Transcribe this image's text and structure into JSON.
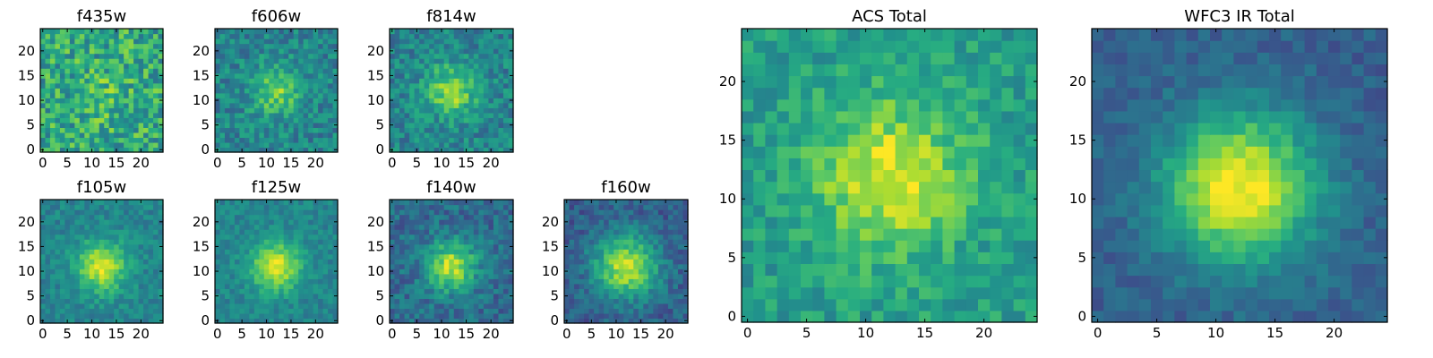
{
  "chart_data": [
    {
      "type": "heatmap",
      "title": "f435w",
      "xticks": [
        "0",
        "5",
        "10",
        "15",
        "20"
      ],
      "yticks": [
        "0",
        "5",
        "10",
        "15",
        "20"
      ],
      "xlim": [
        -0.5,
        24.5
      ],
      "ylim": [
        -0.5,
        24.5
      ],
      "grid_size": 25,
      "colormap": "viridis",
      "grid": false,
      "peak": [
        13,
        11
      ],
      "peak_strength": 0.1,
      "noise": 0.45,
      "base": 0.6
    },
    {
      "type": "heatmap",
      "title": "f606w",
      "xticks": [
        "0",
        "5",
        "10",
        "15",
        "20"
      ],
      "yticks": [
        "0",
        "5",
        "10",
        "15",
        "20"
      ],
      "xlim": [
        -0.5,
        24.5
      ],
      "ylim": [
        -0.5,
        24.5
      ],
      "grid_size": 25,
      "colormap": "viridis",
      "grid": false,
      "peak": [
        12,
        12
      ],
      "peak_strength": 0.35,
      "noise": 0.3,
      "base": 0.45
    },
    {
      "type": "heatmap",
      "title": "f814w",
      "xticks": [
        "0",
        "5",
        "10",
        "15",
        "20"
      ],
      "yticks": [
        "0",
        "5",
        "10",
        "15",
        "20"
      ],
      "xlim": [
        -0.5,
        24.5
      ],
      "ylim": [
        -0.5,
        24.5
      ],
      "grid_size": 25,
      "colormap": "viridis",
      "grid": false,
      "peak": [
        12,
        12
      ],
      "peak_strength": 0.4,
      "noise": 0.3,
      "base": 0.45
    },
    {
      "type": "heatmap",
      "title": "f105w",
      "xticks": [
        "0",
        "5",
        "10",
        "15",
        "20"
      ],
      "yticks": [
        "0",
        "5",
        "10",
        "15",
        "20"
      ],
      "xlim": [
        -0.5,
        24.5
      ],
      "ylim": [
        -0.5,
        24.5
      ],
      "grid_size": 25,
      "colormap": "viridis",
      "grid": false,
      "peak": [
        12,
        11
      ],
      "peak_strength": 0.5,
      "noise": 0.2,
      "base": 0.45
    },
    {
      "type": "heatmap",
      "title": "f125w",
      "xticks": [
        "0",
        "5",
        "10",
        "15",
        "20"
      ],
      "yticks": [
        "0",
        "5",
        "10",
        "15",
        "20"
      ],
      "xlim": [
        -0.5,
        24.5
      ],
      "ylim": [
        -0.5,
        24.5
      ],
      "grid_size": 25,
      "colormap": "viridis",
      "grid": false,
      "peak": [
        12,
        11
      ],
      "peak_strength": 0.5,
      "noise": 0.18,
      "base": 0.45
    },
    {
      "type": "heatmap",
      "title": "f140w",
      "xticks": [
        "0",
        "5",
        "10",
        "15",
        "20"
      ],
      "yticks": [
        "0",
        "5",
        "10",
        "15",
        "20"
      ],
      "xlim": [
        -0.5,
        24.5
      ],
      "ylim": [
        -0.5,
        24.5
      ],
      "grid_size": 25,
      "colormap": "viridis",
      "grid": false,
      "peak": [
        12,
        11
      ],
      "peak_strength": 0.55,
      "noise": 0.25,
      "base": 0.35
    },
    {
      "type": "heatmap",
      "title": "f160w",
      "xticks": [
        "0",
        "5",
        "10",
        "15",
        "20"
      ],
      "yticks": [
        "0",
        "5",
        "10",
        "15",
        "20"
      ],
      "xlim": [
        -0.5,
        24.5
      ],
      "ylim": [
        -0.5,
        24.5
      ],
      "grid_size": 25,
      "colormap": "viridis",
      "grid": false,
      "peak": [
        12,
        11
      ],
      "peak_strength": 0.6,
      "noise": 0.22,
      "base": 0.3
    },
    {
      "type": "heatmap",
      "title": "ACS Total",
      "xticks": [
        "0",
        "5",
        "10",
        "15",
        "20"
      ],
      "yticks": [
        "0",
        "5",
        "10",
        "15",
        "20"
      ],
      "xlim": [
        -0.5,
        24.5
      ],
      "ylim": [
        -0.5,
        24.5
      ],
      "grid_size": 25,
      "colormap": "viridis",
      "grid": false,
      "peak": [
        12,
        12
      ],
      "peak_strength": 0.4,
      "noise": 0.25,
      "base": 0.55
    },
    {
      "type": "heatmap",
      "title": "WFC3 IR Total",
      "xticks": [
        "0",
        "5",
        "10",
        "15",
        "20"
      ],
      "yticks": [
        "0",
        "5",
        "10",
        "15",
        "20"
      ],
      "xlim": [
        -0.5,
        24.5
      ],
      "ylim": [
        -0.5,
        24.5
      ],
      "grid_size": 25,
      "colormap": "viridis",
      "grid": false,
      "peak": [
        12,
        11
      ],
      "peak_strength": 0.7,
      "noise": 0.15,
      "base": 0.3
    }
  ]
}
